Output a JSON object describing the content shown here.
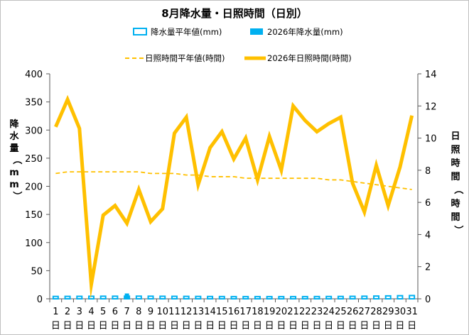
{
  "chart_data": {
    "type": "bar+line",
    "title": "8月降水量・日照時間（日別）",
    "legend": {
      "placement": "top",
      "entries": [
        {
          "key": "rain_avg",
          "label": "降水量平年値(mm)",
          "color": "#00b0f0",
          "style": "hollow-bar"
        },
        {
          "key": "rain_2026",
          "label": "2026年降水量(mm)",
          "color": "#00b0f0",
          "style": "bar"
        },
        {
          "key": "sun_avg",
          "label": "日照時間平年値(時間)",
          "color": "#ffc000",
          "style": "dashed-line"
        },
        {
          "key": "sun_2026",
          "label": "2026年日照時間(時間)",
          "color": "#ffc000",
          "style": "line"
        }
      ]
    },
    "ylabel_left": "降水量（mm）",
    "ylabel_right": "日照時間（時間）",
    "ylim_left": [
      0,
      400
    ],
    "ylim_right": [
      0,
      14
    ],
    "yticks_left": [
      0,
      50,
      100,
      150,
      200,
      250,
      300,
      350,
      400
    ],
    "yticks_right": [
      0,
      2,
      4,
      6,
      8,
      10,
      12,
      14
    ],
    "x_day_suffix": "日",
    "categories": [
      "1",
      "2",
      "3",
      "4",
      "5",
      "6",
      "7",
      "8",
      "9",
      "10",
      "11",
      "12",
      "13",
      "14",
      "15",
      "16",
      "17",
      "18",
      "19",
      "20",
      "21",
      "22",
      "23",
      "24",
      "25",
      "26",
      "27",
      "28",
      "29",
      "30",
      "31"
    ],
    "grid": false,
    "series": [
      {
        "name": "降水量平年値(mm)",
        "axis": "left",
        "kind": "bar-hollow",
        "color": "#00b0f0",
        "values": [
          4.2,
          4.3,
          4.4,
          4.5,
          4.6,
          4.6,
          4.7,
          4.7,
          4.6,
          4.5,
          4.4,
          4.3,
          4.2,
          4.1,
          4.0,
          3.9,
          3.9,
          3.9,
          3.9,
          3.9,
          3.9,
          3.9,
          4.0,
          4.1,
          4.2,
          4.4,
          4.6,
          4.9,
          5.2,
          5.5,
          5.8
        ]
      },
      {
        "name": "2026年降水量(mm)",
        "axis": "left",
        "kind": "bar",
        "color": "#00b0f0",
        "values": [
          0,
          0,
          0,
          0,
          0,
          0,
          9.5,
          0,
          0,
          0,
          0,
          0,
          0,
          0,
          0,
          0.5,
          0,
          0,
          0,
          0,
          0,
          0,
          0,
          0,
          0,
          0,
          0,
          0,
          0,
          0,
          0
        ]
      },
      {
        "name": "日照時間平年値(時間)",
        "axis": "right",
        "kind": "line-dashed",
        "color": "#ffc000",
        "values": [
          7.8,
          7.9,
          7.9,
          7.9,
          7.9,
          7.9,
          7.9,
          7.9,
          7.8,
          7.8,
          7.8,
          7.7,
          7.7,
          7.6,
          7.6,
          7.6,
          7.5,
          7.5,
          7.5,
          7.5,
          7.5,
          7.5,
          7.5,
          7.4,
          7.4,
          7.3,
          7.2,
          7.1,
          7.0,
          6.9,
          6.8
        ]
      },
      {
        "name": "2026年日照時間(時間)",
        "axis": "right",
        "kind": "line",
        "color": "#ffc000",
        "values": [
          10.7,
          12.4,
          10.6,
          0.9,
          5.2,
          5.8,
          4.7,
          6.8,
          4.8,
          5.6,
          10.3,
          11.3,
          7.1,
          9.4,
          10.4,
          8.7,
          10.0,
          7.4,
          10.1,
          8.0,
          12.0,
          11.1,
          10.4,
          10.9,
          11.3,
          7.2,
          5.4,
          8.3,
          5.8,
          8.2,
          11.4
        ]
      }
    ]
  }
}
